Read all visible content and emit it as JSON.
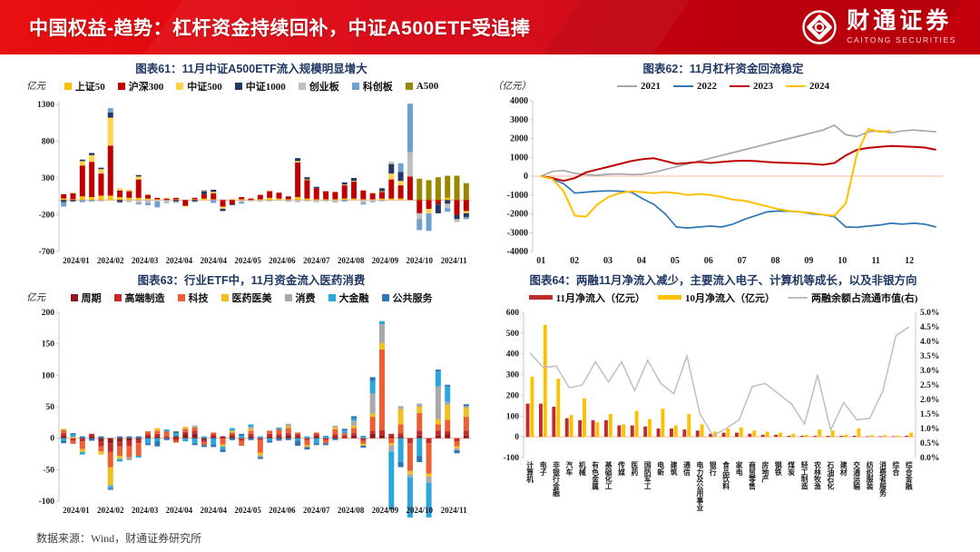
{
  "header": {
    "title": "中国权益-趋势：杠杆资金持续回补，中证A500ETF受追捧",
    "logo_cn": "财通证券",
    "logo_en": "CAITONG SECURITIES",
    "accent": "#d7000f"
  },
  "footer": {
    "source": "数据来源：Wind，财通证券研究所"
  },
  "chart_data": [
    {
      "ref": "c61"
    },
    {
      "ref": "c62"
    },
    {
      "ref": "c63"
    },
    {
      "ref": "c64"
    }
  ],
  "charts": {
    "c61": {
      "type": "stacked",
      "title": "图表61：11月中证A500ETF流入规模明显增大",
      "unit": "亿元",
      "ylim": [
        -700,
        1350
      ],
      "y_ticks": [
        1300,
        800,
        300,
        -200,
        -700
      ],
      "x_labels": [
        "2024/01",
        "2024/02",
        "2024/03",
        "2024/04",
        "2024/04",
        "2024/05",
        "2024/06",
        "2024/07",
        "2024/08",
        "2024/09",
        "2024/10",
        "2024/11"
      ],
      "series": [
        {
          "name": "上证50",
          "color": "#FFC000"
        },
        {
          "name": "沪深300",
          "color": "#C00000"
        },
        {
          "name": "中证500",
          "color": "#FFD34D"
        },
        {
          "name": "中证1000",
          "color": "#1F3864"
        },
        {
          "name": "创业板",
          "color": "#BFBFBF"
        },
        {
          "name": "科创板",
          "color": "#6FA0CF"
        },
        {
          "name": "A500",
          "color": "#9A8700"
        }
      ],
      "values": [
        [
          20,
          60,
          0,
          -30,
          0,
          -60,
          0
        ],
        [
          10,
          80,
          10,
          -20,
          0,
          0,
          0
        ],
        [
          50,
          420,
          60,
          20,
          0,
          -30,
          0
        ],
        [
          40,
          480,
          90,
          30,
          0,
          -20,
          0
        ],
        [
          60,
          300,
          60,
          20,
          -20,
          0,
          0
        ],
        [
          60,
          680,
          380,
          70,
          0,
          60,
          0
        ],
        [
          40,
          90,
          30,
          -30,
          -10,
          0,
          0
        ],
        [
          30,
          90,
          20,
          0,
          -30,
          0,
          0
        ],
        [
          30,
          250,
          40,
          20,
          -40,
          -20,
          0
        ],
        [
          20,
          50,
          10,
          0,
          -40,
          -30,
          0
        ],
        [
          10,
          20,
          0,
          0,
          -20,
          -80,
          0
        ],
        [
          0,
          20,
          10,
          0,
          -30,
          -10,
          0
        ],
        [
          10,
          20,
          0,
          -20,
          -20,
          0,
          0
        ],
        [
          0,
          -80,
          -10,
          0,
          0,
          0,
          0
        ],
        [
          10,
          20,
          0,
          -20,
          -10,
          0,
          0
        ],
        [
          20,
          60,
          0,
          40,
          20,
          0,
          0
        ],
        [
          10,
          80,
          20,
          30,
          0,
          -40,
          0
        ],
        [
          0,
          -90,
          -30,
          -30,
          10,
          0,
          0
        ],
        [
          10,
          -60,
          0,
          -10,
          0,
          0,
          0
        ],
        [
          10,
          30,
          0,
          0,
          -30,
          -20,
          0
        ],
        [
          0,
          20,
          10,
          0,
          -20,
          0,
          0
        ],
        [
          10,
          60,
          0,
          0,
          -20,
          0,
          0
        ],
        [
          30,
          90,
          10,
          0,
          -20,
          0,
          0
        ],
        [
          20,
          80,
          0,
          0,
          -10,
          0,
          0
        ],
        [
          10,
          40,
          0,
          0,
          -10,
          -10,
          0
        ],
        [
          40,
          470,
          20,
          40,
          -30,
          0,
          0
        ],
        [
          20,
          250,
          10,
          30,
          -20,
          0,
          0
        ],
        [
          10,
          150,
          0,
          20,
          -30,
          0,
          0
        ],
        [
          10,
          110,
          0,
          0,
          -20,
          0,
          0
        ],
        [
          10,
          100,
          0,
          0,
          -20,
          -10,
          0
        ],
        [
          20,
          180,
          10,
          30,
          0,
          -20,
          0
        ],
        [
          20,
          230,
          10,
          40,
          0,
          0,
          0
        ],
        [
          10,
          120,
          0,
          0,
          -40,
          -20,
          0
        ],
        [
          10,
          80,
          10,
          0,
          -20,
          -10,
          0
        ],
        [
          20,
          90,
          10,
          40,
          -20,
          0,
          0
        ],
        [
          20,
          260,
          80,
          130,
          30,
          0,
          0
        ],
        [
          20,
          180,
          60,
          120,
          0,
          120,
          0
        ],
        [
          0,
          320,
          0,
          0,
          330,
          660,
          0
        ],
        [
          0,
          -180,
          0,
          0,
          -80,
          -150,
          290
        ],
        [
          0,
          -120,
          -60,
          0,
          0,
          -240,
          270
        ],
        [
          0,
          -60,
          0,
          -120,
          0,
          0,
          310
        ],
        [
          30,
          0,
          0,
          -50,
          -60,
          -50,
          300
        ],
        [
          0,
          -200,
          0,
          -60,
          -40,
          0,
          330
        ],
        [
          0,
          -150,
          -30,
          -50,
          0,
          -30,
          230
        ]
      ]
    },
    "c62": {
      "type": "lines",
      "title": "图表62：11月杠杆资金回流稳定",
      "unit": "（亿元）",
      "ylim": [
        -4000,
        4000
      ],
      "y_ticks": [
        4000,
        3000,
        2000,
        1000,
        0,
        -1000,
        -2000,
        -3000,
        -4000
      ],
      "xlim": [
        0.75,
        13.0
      ],
      "x_start": 1,
      "x_step": 0.3371,
      "x_ticks": [
        "01",
        "02",
        "03",
        "04",
        "05",
        "06",
        "07",
        "08",
        "09",
        "10",
        "11",
        "12"
      ],
      "series": [
        {
          "name": "2021",
          "color": "#A6A6A6",
          "width": 1.7,
          "values": [
            0,
            250,
            300,
            150,
            80,
            50,
            100,
            120,
            80,
            100,
            200,
            350,
            500,
            650,
            800,
            950,
            1100,
            1250,
            1400,
            1550,
            1700,
            1850,
            2000,
            2150,
            2300,
            2450,
            2700,
            2200,
            2100,
            2350,
            2400,
            2300,
            2400,
            2450,
            2400,
            2350
          ]
        },
        {
          "name": "2022",
          "color": "#2E75B6",
          "width": 1.7,
          "values": [
            0,
            -150,
            -400,
            -900,
            -850,
            -800,
            -780,
            -800,
            -850,
            -1200,
            -1500,
            -2000,
            -2700,
            -2750,
            -2700,
            -2650,
            -2700,
            -2550,
            -2300,
            -2100,
            -1900,
            -1850,
            -1870,
            -1900,
            -2000,
            -2050,
            -2150,
            -2700,
            -2720,
            -2650,
            -2600,
            -2500,
            -2550,
            -2500,
            -2550,
            -2700
          ]
        },
        {
          "name": "2023",
          "color": "#C00000",
          "width": 2.0,
          "values": [
            0,
            -100,
            -250,
            -100,
            200,
            350,
            500,
            650,
            800,
            900,
            950,
            800,
            650,
            700,
            750,
            700,
            750,
            800,
            820,
            800,
            750,
            720,
            700,
            680,
            650,
            600,
            700,
            1100,
            1400,
            1500,
            1550,
            1600,
            1580,
            1550,
            1520,
            1400
          ]
        },
        {
          "name": "2024",
          "color": "#FFC000",
          "width": 2.0,
          "values": [
            0,
            -150,
            -800,
            -2100,
            -2150,
            -1500,
            -1100,
            -900,
            -800,
            -850,
            -900,
            -850,
            -900,
            -1000,
            -950,
            -1000,
            -1100,
            -1250,
            -1300,
            -1450,
            -1600,
            -1750,
            -1850,
            -1900,
            -1950,
            -2050,
            -2100,
            -1450,
            1200,
            2500,
            2350,
            2400
          ]
        }
      ]
    },
    "c63": {
      "type": "stacked",
      "title": "图表63：行业ETF中，11月资金流入医药消费",
      "unit": "亿元",
      "ylim": [
        -100,
        200
      ],
      "y_ticks": [
        200,
        150,
        100,
        50,
        0,
        -50,
        -100
      ],
      "x_labels": [
        "2024/01",
        "2024/02",
        "2024/03",
        "2024/04",
        "2024/04",
        "2024/05",
        "2024/06",
        "2024/07",
        "2024/08",
        "2024/09",
        "2024/10",
        "2024/11"
      ],
      "series": [
        {
          "name": "周期",
          "color": "#8B1A1A"
        },
        {
          "name": "高端制造",
          "color": "#C52A2A"
        },
        {
          "name": "科技",
          "color": "#ED5F33"
        },
        {
          "name": "医药医美",
          "color": "#EFC020"
        },
        {
          "name": "消费",
          "color": "#A9A9A9"
        },
        {
          "name": "大金融",
          "color": "#2BA7DE"
        },
        {
          "name": "公共服务",
          "color": "#2E75B6"
        }
      ],
      "values": [
        [
          4,
          4,
          5,
          2,
          0,
          -4,
          -4
        ],
        [
          0,
          -4,
          -5,
          2,
          0,
          4,
          2
        ],
        [
          0,
          -5,
          -12,
          -5,
          0,
          -4,
          3
        ],
        [
          3,
          4,
          0,
          0,
          0,
          0,
          -4
        ],
        [
          -5,
          -8,
          -8,
          -5,
          0,
          0,
          3
        ],
        [
          -8,
          -14,
          -24,
          -28,
          -3,
          -3,
          -2
        ],
        [
          -5,
          -8,
          -15,
          -5,
          0,
          -4,
          3
        ],
        [
          -4,
          -8,
          -18,
          0,
          -5,
          0,
          3
        ],
        [
          -3,
          -5,
          -20,
          0,
          0,
          -3,
          3
        ],
        [
          3,
          3,
          5,
          0,
          0,
          -8,
          -3
        ],
        [
          3,
          4,
          5,
          4,
          0,
          -5,
          -8
        ],
        [
          0,
          3,
          8,
          0,
          0,
          3,
          -3
        ],
        [
          3,
          -4,
          -3,
          0,
          0,
          5,
          3
        ],
        [
          6,
          4,
          5,
          3,
          0,
          -5,
          0
        ],
        [
          7,
          5,
          5,
          0,
          3,
          -8,
          -3
        ],
        [
          -3,
          -3,
          -5,
          0,
          0,
          3,
          -3
        ],
        [
          3,
          3,
          3,
          0,
          0,
          -10,
          -4
        ],
        [
          3,
          0,
          -10,
          -3,
          0,
          -5,
          -4
        ],
        [
          3,
          3,
          3,
          3,
          0,
          4,
          -3
        ],
        [
          0,
          -4,
          -8,
          0,
          0,
          4,
          3
        ],
        [
          3,
          4,
          5,
          3,
          3,
          4,
          -3
        ],
        [
          0,
          -3,
          -20,
          -4,
          -3,
          3,
          -3
        ],
        [
          3,
          4,
          5,
          0,
          0,
          -4,
          -3
        ],
        [
          3,
          3,
          8,
          0,
          0,
          3,
          -4
        ],
        [
          4,
          4,
          8,
          3,
          4,
          0,
          -3
        ],
        [
          3,
          3,
          3,
          0,
          0,
          -4,
          -8
        ],
        [
          0,
          -3,
          -8,
          -3,
          0,
          3,
          -4
        ],
        [
          3,
          3,
          3,
          0,
          0,
          -8,
          -3
        ],
        [
          0,
          -3,
          -5,
          0,
          0,
          4,
          -3
        ],
        [
          3,
          3,
          8,
          3,
          3,
          0,
          -3
        ],
        [
          2,
          3,
          3,
          0,
          0,
          4,
          3
        ],
        [
          4,
          4,
          8,
          4,
          8,
          4,
          3
        ],
        [
          0,
          -4,
          -5,
          -3,
          0,
          4,
          -3
        ],
        [
          7,
          5,
          22,
          5,
          32,
          20,
          6
        ],
        [
          5,
          8,
          128,
          10,
          30,
          5,
          0
        ],
        [
          3,
          4,
          -8,
          -3,
          -10,
          -88,
          -4
        ],
        [
          3,
          5,
          14,
          24,
          5,
          -38,
          -8
        ],
        [
          0,
          -8,
          -44,
          -5,
          -5,
          -82,
          -8
        ],
        [
          4,
          8,
          28,
          10,
          5,
          -28,
          -10
        ],
        [
          0,
          -8,
          -48,
          -5,
          -10,
          -58,
          -5
        ],
        [
          4,
          8,
          10,
          8,
          52,
          24,
          3
        ],
        [
          6,
          5,
          18,
          24,
          5,
          24,
          3
        ],
        [
          0,
          -5,
          -8,
          -3,
          -3,
          0,
          -5
        ],
        [
          4,
          8,
          22,
          14,
          3,
          0,
          3
        ]
      ]
    },
    "c64": {
      "type": "combo",
      "title": "图表64：两融11月净流入减少，主要流入电子、计算机等成长，以及非银方向",
      "unit": "",
      "ylim": [
        -100,
        600
      ],
      "y_ticks": [
        600,
        500,
        400,
        300,
        200,
        100,
        0,
        -100
      ],
      "y2lim": [
        0,
        5
      ],
      "y2_ticks": [
        5.0,
        4.5,
        4.0,
        3.5,
        3.0,
        2.5,
        2.0,
        1.5,
        1.0,
        0.5,
        0.0
      ],
      "categories": [
        "计算机",
        "电子",
        "非银行金融",
        "汽车",
        "机械",
        "有色金属",
        "基础化工",
        "传媒",
        "医药",
        "国防军工",
        "电新",
        "建筑",
        "通信",
        "电力及公用事业",
        "银行",
        "食品饮料",
        "家电",
        "商贸零售",
        "房地产",
        "钢铁",
        "煤炭",
        "轻工制造",
        "农林牧渔",
        "石油石化",
        "建材",
        "交通运输",
        "纺织服装",
        "消费者服务",
        "综合",
        "综合金融"
      ],
      "series": [
        {
          "name": "11月净流入（亿元）",
          "color": "#C02B2B",
          "swatch": "thick",
          "values": [
            160,
            160,
            145,
            90,
            80,
            80,
            80,
            55,
            55,
            50,
            40,
            40,
            35,
            30,
            15,
            20,
            20,
            15,
            10,
            10,
            5,
            5,
            5,
            5,
            5,
            5,
            3,
            3,
            3,
            5
          ]
        },
        {
          "name": "10月净流入（亿元）",
          "color": "#FFC000",
          "swatch": "thick",
          "values": [
            290,
            540,
            280,
            105,
            185,
            70,
            110,
            60,
            125,
            85,
            135,
            55,
            110,
            60,
            25,
            40,
            45,
            30,
            25,
            20,
            15,
            10,
            35,
            30,
            10,
            40,
            8,
            8,
            5,
            20
          ]
        },
        {
          "name": "两融余额占流通市值(右)",
          "color": "#BFBFBF",
          "swatch": "line",
          "role": "line",
          "values": [
            3.6,
            3.1,
            3.15,
            2.4,
            2.5,
            3.3,
            2.6,
            3.3,
            2.3,
            3.35,
            2.55,
            2.2,
            3.5,
            1.5,
            0.75,
            1.0,
            1.3,
            2.45,
            2.55,
            2.2,
            1.85,
            1.15,
            2.85,
            0.95,
            1.9,
            1.3,
            1.35,
            2.3,
            4.2,
            4.5
          ]
        }
      ]
    }
  }
}
